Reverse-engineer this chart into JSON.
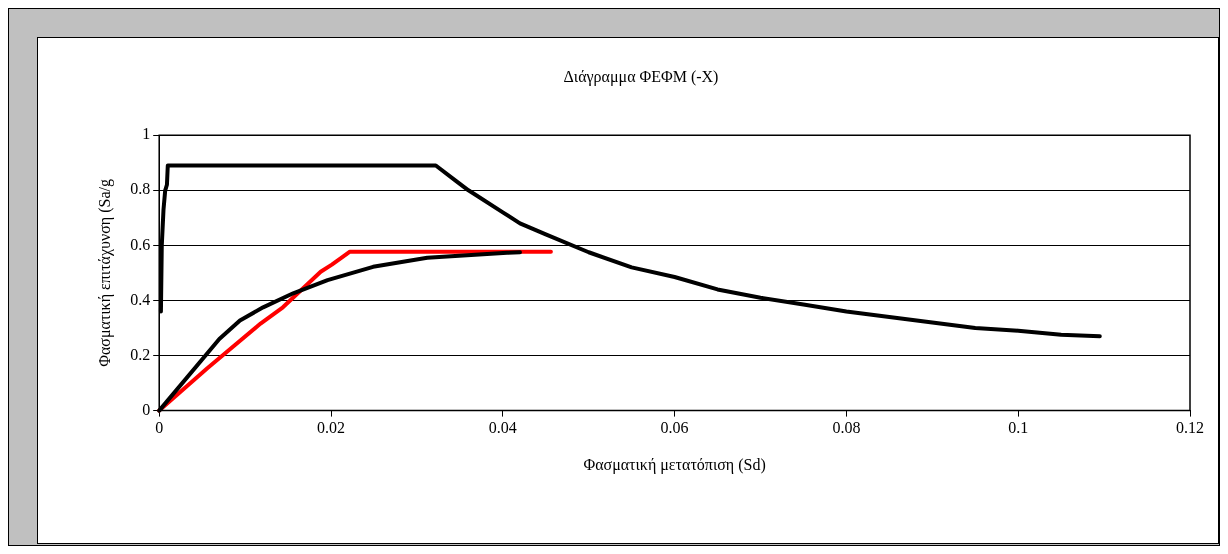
{
  "chart_data": {
    "type": "line",
    "title": "Διάγραμμα ΦΕΦΜ (-X)",
    "xlabel": "Φασματική μετατόπιση (Sd)",
    "ylabel": "Φασματική επιτάχυνση (Sa/g",
    "xlim": [
      0,
      0.12
    ],
    "xticks": [
      0,
      0.02,
      0.04,
      0.06,
      0.08,
      0.1,
      0.12
    ],
    "ylim": [
      0,
      1
    ],
    "yticks": [
      0,
      0.2,
      0.4,
      0.6,
      0.8,
      1
    ],
    "grid": "y",
    "legend": false,
    "marker": "none",
    "line_style": "solid",
    "series": [
      {
        "color": "#000000",
        "x": [
          0.0002,
          0.0003,
          0.0005,
          0.0007,
          0.0009,
          0.001,
          0.0322,
          0.0345,
          0.036,
          0.04,
          0.042,
          0.045,
          0.05,
          0.055,
          0.06,
          0.065,
          0.07,
          0.075,
          0.08,
          0.085,
          0.09,
          0.095,
          0.1,
          0.105,
          0.1095
        ],
        "values": [
          0.36,
          0.6,
          0.73,
          0.8,
          0.82,
          0.89,
          0.89,
          0.835,
          0.8,
          0.72,
          0.68,
          0.64,
          0.575,
          0.52,
          0.485,
          0.44,
          0.41,
          0.385,
          0.36,
          0.34,
          0.32,
          0.3,
          0.29,
          0.275,
          0.27
        ]
      },
      {
        "color": "#000000",
        "x": [
          0,
          0.007,
          0.0094,
          0.0121,
          0.0156,
          0.0196,
          0.0249,
          0.0312,
          0.0405,
          0.042
        ],
        "values": [
          0,
          0.26,
          0.327,
          0.375,
          0.426,
          0.474,
          0.522,
          0.555,
          0.573,
          0.575
        ]
      },
      {
        "color": "#ff0000",
        "x": [
          0,
          0.0056,
          0.0118,
          0.0144,
          0.0188,
          0.0201,
          0.0222,
          0.0456
        ],
        "values": [
          0,
          0.154,
          0.316,
          0.375,
          0.504,
          0.53,
          0.577,
          0.577
        ]
      }
    ]
  }
}
